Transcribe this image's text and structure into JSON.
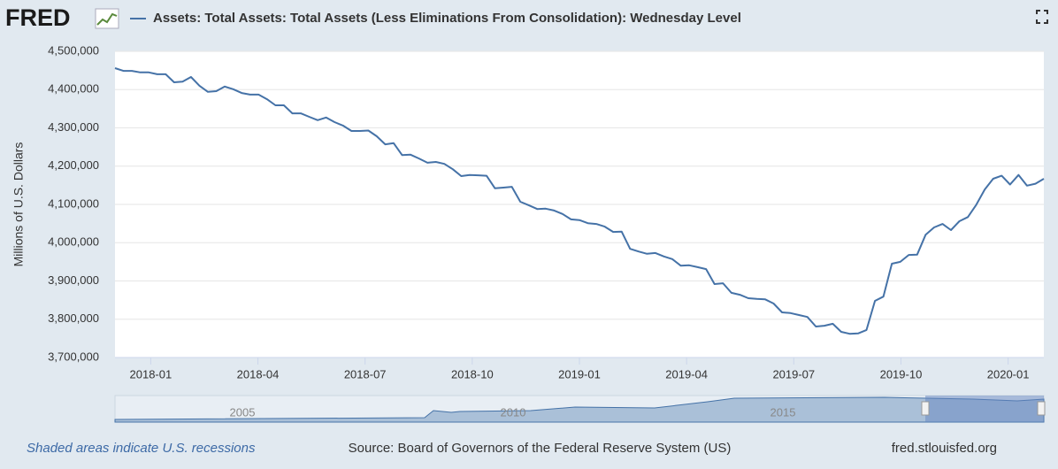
{
  "brand": "FRED",
  "chart_data": {
    "type": "line",
    "y_label": "Millions of U.S. Dollars",
    "series": [
      {
        "name": "Assets: Total Assets: Total Assets (Less Eliminations From Consolidation): Wednesday Level",
        "color": "#4572a7",
        "values": [
          4456000,
          4449000,
          4449000,
          4445000,
          4445000,
          4440000,
          4440000,
          4419000,
          4421000,
          4433000,
          4410000,
          4394000,
          4396000,
          4408000,
          4401000,
          4391000,
          4387000,
          4387000,
          4375000,
          4359000,
          4359000,
          4338000,
          4338000,
          4329000,
          4320000,
          4327000,
          4315000,
          4306000,
          4292000,
          4292000,
          4293000,
          4278000,
          4257000,
          4260000,
          4229000,
          4230000,
          4220000,
          4209000,
          4211000,
          4206000,
          4192000,
          4174000,
          4177000,
          4176000,
          4175000,
          4142000,
          4144000,
          4146000,
          4107000,
          4098000,
          4088000,
          4089000,
          4084000,
          4075000,
          4061000,
          4059000,
          4051000,
          4049000,
          4042000,
          4028000,
          4029000,
          3984000,
          3977000,
          3971000,
          3973000,
          3964000,
          3957000,
          3940000,
          3941000,
          3936000,
          3931000,
          3892000,
          3894000,
          3869000,
          3864000,
          3855000,
          3853000,
          3852000,
          3841000,
          3818000,
          3816000,
          3811000,
          3806000,
          3781000,
          3783000,
          3788000,
          3767000,
          3762000,
          3763000,
          3772000,
          3848000,
          3859000,
          3945000,
          3950000,
          3968000,
          3969000,
          4021000,
          4040000,
          4049000,
          4033000,
          4056000,
          4067000,
          4099000,
          4139000,
          4167000,
          4175000,
          4152000,
          4177000,
          4149000,
          4154000,
          4167000
        ]
      }
    ],
    "xlim": [
      "2017-12",
      "2020-02"
    ],
    "xticks": [
      "2018-01",
      "2018-04",
      "2018-07",
      "2018-10",
      "2019-01",
      "2019-04",
      "2019-07",
      "2019-10",
      "2020-01"
    ],
    "ylim": [
      3700000,
      4500000
    ],
    "yticks": [
      {
        "value": 3700000,
        "label": "3,700,000"
      },
      {
        "value": 3800000,
        "label": "3,800,000"
      },
      {
        "value": 3900000,
        "label": "3,900,000"
      },
      {
        "value": 4000000,
        "label": "4,000,000"
      },
      {
        "value": 4100000,
        "label": "4,100,000"
      },
      {
        "value": 4200000,
        "label": "4,200,000"
      },
      {
        "value": 4300000,
        "label": "4,300,000"
      },
      {
        "value": 4400000,
        "label": "4,400,000"
      },
      {
        "value": 4500000,
        "label": "4,500,000"
      }
    ],
    "grid": true
  },
  "navigator_labels": [
    "2005",
    "2010",
    "2015"
  ],
  "footer": {
    "recessions": "Shaded areas indicate U.S. recessions",
    "source": "Source: Board of Governors of the Federal Reserve System (US)",
    "site": "fred.stlouisfed.org"
  }
}
